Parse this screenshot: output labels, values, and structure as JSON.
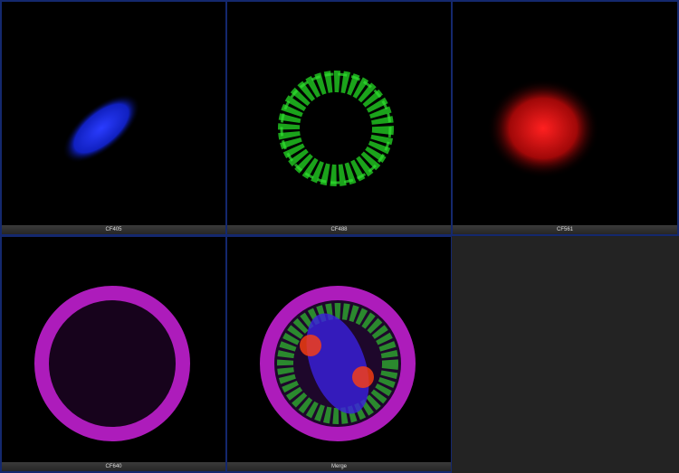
{
  "panels": [
    {
      "label": "CF405",
      "color": "#1a2cff"
    },
    {
      "label": "CF488",
      "color": "#22cc22"
    },
    {
      "label": "CF561",
      "color": "#ff1a1a"
    },
    {
      "label": "CF640",
      "color": "#c020d0"
    },
    {
      "label": "Merge",
      "color": "#ffffff"
    }
  ]
}
